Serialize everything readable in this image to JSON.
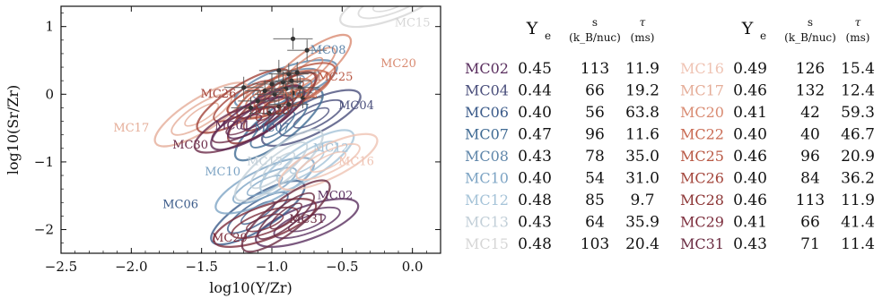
{
  "chart_data": {
    "type": "contour",
    "xlabel": "log10(Y/Zr)",
    "ylabel": "log10(Sr/Zr)",
    "xlim": [
      -2.5,
      0.2
    ],
    "ylim": [
      -2.35,
      1.3
    ],
    "x_ticks": [
      "−2.5",
      "−2.0",
      "−1.5",
      "−1.0",
      "−0.5",
      "0.0"
    ],
    "y_ticks": [
      "−2",
      "−1",
      "0",
      "1"
    ],
    "x_tick_values": [
      -2.5,
      -2.0,
      -1.5,
      -1.0,
      -0.5,
      0.0
    ],
    "y_tick_values": [
      -2,
      -1,
      0,
      1
    ],
    "grid": false,
    "series": [
      {
        "name": "MC02",
        "color": "#5a2f5f",
        "center": [
          -0.75,
          -1.9
        ],
        "label_pos": [
          -0.55,
          -1.55
        ]
      },
      {
        "name": "MC04",
        "color": "#4a4f7c",
        "center": [
          -0.72,
          -0.35
        ],
        "label_pos": [
          -0.4,
          -0.22
        ]
      },
      {
        "name": "MC06",
        "color": "#3b5b8a",
        "center": [
          -1.1,
          -1.75
        ],
        "label_pos": [
          -1.65,
          -1.68
        ]
      },
      {
        "name": "MC07",
        "color": "#406b94",
        "center": [
          -0.95,
          -0.45
        ],
        "label_pos": [
          -1.0,
          -0.55
        ]
      },
      {
        "name": "MC08",
        "color": "#5f86aa",
        "center": [
          -0.9,
          0.15
        ],
        "label_pos": [
          -0.6,
          0.6
        ]
      },
      {
        "name": "MC10",
        "color": "#7da4c4",
        "center": [
          -1.05,
          -1.35
        ],
        "label_pos": [
          -1.35,
          -1.2
        ]
      },
      {
        "name": "MC12",
        "color": "#a5c3d8",
        "center": [
          -0.75,
          -1.0
        ],
        "label_pos": [
          -0.58,
          -0.85
        ]
      },
      {
        "name": "MC13",
        "color": "#c2cfd8",
        "center": [
          -0.95,
          -1.05
        ],
        "label_pos": [
          -1.05,
          -1.05
        ]
      },
      {
        "name": "MC15",
        "color": "#d6d6d6",
        "center": [
          -0.15,
          1.35
        ],
        "label_pos": [
          0.0,
          1.0
        ]
      },
      {
        "name": "MC16",
        "color": "#efc3b3",
        "center": [
          -0.6,
          -1.0
        ],
        "label_pos": [
          -0.4,
          -1.05
        ]
      },
      {
        "name": "MC17",
        "color": "#e5ad98",
        "center": [
          -1.5,
          -0.3
        ],
        "label_pos": [
          -2.0,
          -0.55
        ]
      },
      {
        "name": "MC20",
        "color": "#d98b72",
        "center": [
          -0.75,
          0.35
        ],
        "label_pos": [
          -0.1,
          0.4
        ]
      },
      {
        "name": "MC22",
        "color": "#c96a52",
        "center": [
          -0.95,
          0.0
        ],
        "label_pos": [
          -0.8,
          -0.05
        ]
      },
      {
        "name": "MC25",
        "color": "#b85743",
        "center": [
          -0.9,
          0.05
        ],
        "label_pos": [
          -0.55,
          0.2
        ]
      },
      {
        "name": "MC26",
        "color": "#a3443a",
        "center": [
          -1.2,
          -0.1
        ],
        "label_pos": [
          -1.38,
          -0.05
        ]
      },
      {
        "name": "MC28",
        "color": "#8c3535",
        "center": [
          -1.0,
          -0.2
        ],
        "label_pos": [
          -1.0,
          -0.3
        ]
      },
      {
        "name": "MC29",
        "color": "#7c2d3c",
        "center": [
          -1.05,
          -1.9
        ],
        "label_pos": [
          -1.3,
          -2.18
        ]
      },
      {
        "name": "MC30",
        "color": "#6b2b48",
        "center": [
          -1.2,
          -0.45
        ],
        "label_pos": [
          -1.58,
          -0.8
        ]
      },
      {
        "name": "MC01",
        "color": "#5e2a55",
        "center": [
          -1.1,
          -0.35
        ],
        "label_pos": [
          -1.28,
          -0.52
        ]
      },
      {
        "name": "MC31",
        "color": "#6a2c42",
        "center": [
          -0.9,
          -1.8
        ],
        "label_pos": [
          -0.75,
          -1.9
        ]
      }
    ],
    "observations": [
      {
        "x": -0.85,
        "y": 0.82
      },
      {
        "x": -0.75,
        "y": 0.65
      },
      {
        "x": -0.95,
        "y": 0.35
      },
      {
        "x": -0.88,
        "y": 0.3
      },
      {
        "x": -0.82,
        "y": 0.32
      },
      {
        "x": -1.0,
        "y": 0.15
      },
      {
        "x": -0.92,
        "y": 0.18
      },
      {
        "x": -0.86,
        "y": 0.2
      },
      {
        "x": -0.8,
        "y": 0.1
      },
      {
        "x": -1.05,
        "y": 0.05
      },
      {
        "x": -0.98,
        "y": 0.0
      },
      {
        "x": -0.9,
        "y": 0.08
      },
      {
        "x": -0.85,
        "y": 0.02
      },
      {
        "x": -1.1,
        "y": -0.1
      },
      {
        "x": -0.95,
        "y": -0.18
      },
      {
        "x": -1.15,
        "y": -0.2
      },
      {
        "x": -0.88,
        "y": -0.15
      },
      {
        "x": -1.2,
        "y": 0.1
      },
      {
        "x": -0.78,
        "y": -0.05
      },
      {
        "x": -1.02,
        "y": -0.28
      }
    ]
  },
  "table": {
    "headers": {
      "ye": "Y",
      "ye_sub": "e",
      "s_top": "s",
      "s_unit": "(k_B/nuc)",
      "tau_top": "τ",
      "tau_unit": "(ms)"
    },
    "left_rows": [
      {
        "name": "MC02",
        "ye": "0.45",
        "s": "113",
        "tau": "11.9",
        "color": "#5a2f5f"
      },
      {
        "name": "MC04",
        "ye": "0.44",
        "s": "66",
        "tau": "19.2",
        "color": "#4a4f7c"
      },
      {
        "name": "MC06",
        "ye": "0.40",
        "s": "56",
        "tau": "63.8",
        "color": "#3b5b8a"
      },
      {
        "name": "MC07",
        "ye": "0.47",
        "s": "96",
        "tau": "11.6",
        "color": "#406b94"
      },
      {
        "name": "MC08",
        "ye": "0.43",
        "s": "78",
        "tau": "35.0",
        "color": "#5f86aa"
      },
      {
        "name": "MC10",
        "ye": "0.40",
        "s": "54",
        "tau": "31.0",
        "color": "#7da4c4"
      },
      {
        "name": "MC12",
        "ye": "0.48",
        "s": "85",
        "tau": "9.7",
        "color": "#a5c3d8"
      },
      {
        "name": "MC13",
        "ye": "0.43",
        "s": "64",
        "tau": "35.9",
        "color": "#c2cfd8"
      },
      {
        "name": "MC15",
        "ye": "0.48",
        "s": "103",
        "tau": "20.4",
        "color": "#d6d6d6"
      }
    ],
    "right_rows": [
      {
        "name": "MC16",
        "ye": "0.49",
        "s": "126",
        "tau": "15.4",
        "color": "#efc3b3"
      },
      {
        "name": "MC17",
        "ye": "0.46",
        "s": "132",
        "tau": "12.4",
        "color": "#e5ad98"
      },
      {
        "name": "MC20",
        "ye": "0.41",
        "s": "42",
        "tau": "59.3",
        "color": "#d98b72"
      },
      {
        "name": "MC22",
        "ye": "0.40",
        "s": "40",
        "tau": "46.7",
        "color": "#c96a52"
      },
      {
        "name": "MC25",
        "ye": "0.46",
        "s": "96",
        "tau": "20.9",
        "color": "#b85743"
      },
      {
        "name": "MC26",
        "ye": "0.40",
        "s": "84",
        "tau": "36.2",
        "color": "#a3443a"
      },
      {
        "name": "MC28",
        "ye": "0.46",
        "s": "113",
        "tau": "11.9",
        "color": "#8c3535"
      },
      {
        "name": "MC29",
        "ye": "0.41",
        "s": "66",
        "tau": "41.4",
        "color": "#7c2d3c"
      },
      {
        "name": "MC31",
        "ye": "0.43",
        "s": "71",
        "tau": "11.4",
        "color": "#6a2c42"
      }
    ]
  }
}
